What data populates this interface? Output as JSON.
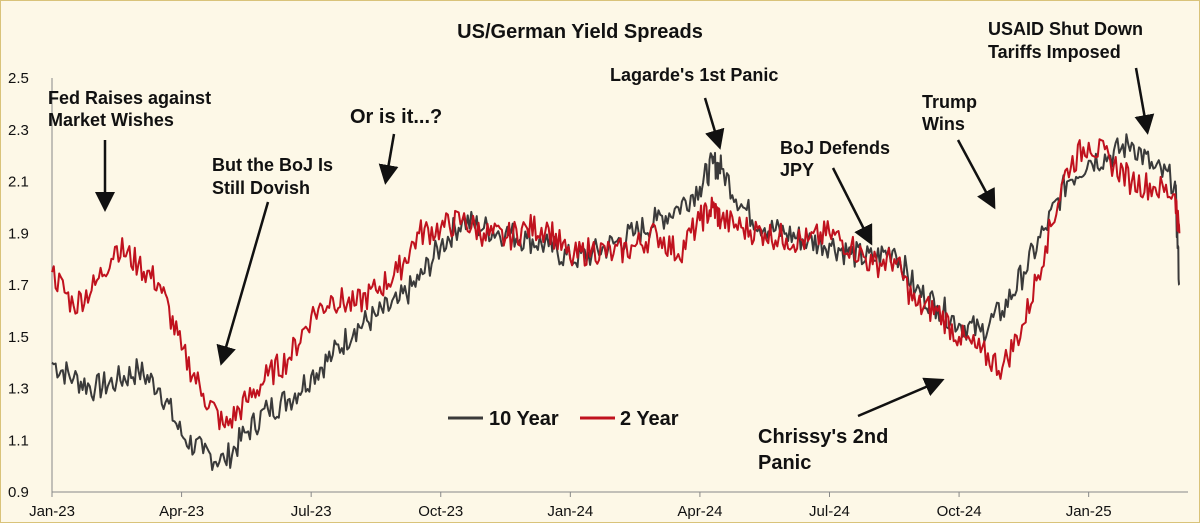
{
  "chart_data": {
    "type": "line",
    "title": "US/German Yield Spreads",
    "xlabel": "",
    "ylabel": "",
    "ylim": [
      0.9,
      2.5
    ],
    "yticks": [
      "0.9",
      "1.1",
      "1.3",
      "1.5",
      "1.7",
      "1.9",
      "2.1",
      "2.3",
      "2.5"
    ],
    "xticks": [
      "Jan-23",
      "Apr-23",
      "Jul-23",
      "Oct-23",
      "Jan-24",
      "Apr-24",
      "Jul-24",
      "Oct-24",
      "Jan-25"
    ],
    "xlim_months": [
      0,
      26.3
    ],
    "legend": {
      "position": "bottom-center"
    },
    "series": [
      {
        "name": "10 Year",
        "color": "#3a3a3a",
        "x": [
          0,
          0.5,
          1,
          1.5,
          2,
          2.5,
          3,
          3.5,
          4,
          4.5,
          5,
          5.5,
          6,
          6.5,
          7,
          7.5,
          8,
          8.5,
          9,
          9.5,
          10,
          10.5,
          11,
          11.5,
          12,
          12.5,
          13,
          13.5,
          14,
          14.5,
          15,
          15.3,
          15.5,
          16,
          16.5,
          17,
          17.5,
          18,
          18.5,
          19,
          19.5,
          20,
          20.5,
          21,
          21.5,
          22,
          22.5,
          23,
          23.5,
          24,
          24.5,
          25,
          25.5,
          26,
          26.1
        ],
        "values": [
          1.4,
          1.34,
          1.3,
          1.33,
          1.37,
          1.3,
          1.12,
          1.05,
          1.02,
          1.13,
          1.22,
          1.26,
          1.35,
          1.43,
          1.53,
          1.58,
          1.63,
          1.72,
          1.85,
          1.95,
          1.92,
          1.9,
          1.88,
          1.85,
          1.8,
          1.82,
          1.86,
          1.9,
          1.95,
          2.0,
          2.08,
          2.17,
          2.15,
          2.0,
          1.92,
          1.9,
          1.87,
          1.86,
          1.82,
          1.8,
          1.84,
          1.68,
          1.62,
          1.55,
          1.52,
          1.6,
          1.75,
          1.92,
          2.1,
          2.18,
          2.2,
          2.25,
          2.15,
          2.1,
          1.7
        ]
      },
      {
        "name": "2 Year",
        "color": "#c0121e",
        "x": [
          0,
          0.5,
          1,
          1.5,
          2,
          2.5,
          3,
          3.5,
          4,
          4.5,
          5,
          5.5,
          6,
          6.5,
          7,
          7.5,
          8,
          8.5,
          9,
          9.5,
          10,
          10.5,
          11,
          11.5,
          12,
          12.5,
          13,
          13.5,
          14,
          14.5,
          15,
          15.3,
          15.5,
          16,
          16.5,
          17,
          17.5,
          18,
          18.5,
          19,
          19.5,
          20,
          20.5,
          21,
          21.5,
          22,
          22.5,
          23,
          23.5,
          24,
          24.5,
          25,
          25.5,
          26,
          26.1
        ],
        "values": [
          1.75,
          1.62,
          1.7,
          1.85,
          1.78,
          1.7,
          1.45,
          1.28,
          1.15,
          1.25,
          1.35,
          1.42,
          1.58,
          1.65,
          1.62,
          1.68,
          1.75,
          1.9,
          1.92,
          1.95,
          1.9,
          1.88,
          1.92,
          1.92,
          1.8,
          1.84,
          1.82,
          1.85,
          1.9,
          1.82,
          1.95,
          2.0,
          1.95,
          1.92,
          1.9,
          1.88,
          1.87,
          1.9,
          1.85,
          1.78,
          1.8,
          1.62,
          1.6,
          1.5,
          1.44,
          1.38,
          1.55,
          1.85,
          2.15,
          2.25,
          2.18,
          2.1,
          2.08,
          2.05,
          1.9
        ]
      }
    ],
    "annotations": [
      {
        "lines": [
          "Fed Raises against",
          "Market Wishes"
        ]
      },
      {
        "lines": [
          "But the BoJ Is",
          "Still Dovish"
        ]
      },
      {
        "lines": [
          "Or is it...?"
        ]
      },
      {
        "lines": [
          "Lagarde's 1st Panic"
        ]
      },
      {
        "lines": [
          "BoJ Defends",
          "JPY"
        ]
      },
      {
        "lines": [
          "Trump",
          "Wins"
        ]
      },
      {
        "lines": [
          "USAID Shut Down",
          "Tariffs Imposed"
        ]
      },
      {
        "lines": [
          "Chrissy's 2nd",
          "Panic"
        ]
      }
    ]
  }
}
